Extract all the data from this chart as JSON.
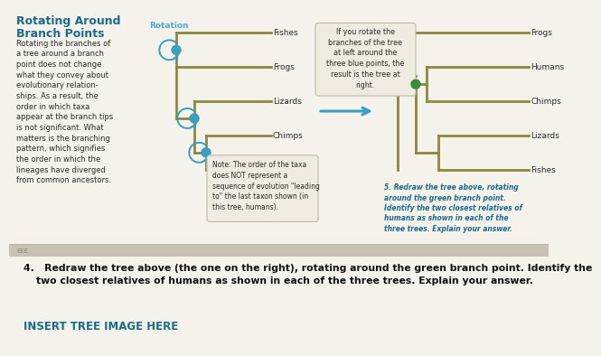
{
  "panel_bg": "#d4cdbf",
  "bottom_bg": "#f5f2ec",
  "title_line1": "Rotating Around",
  "title_line2": "Branch Points",
  "title_color": "#1a6b8a",
  "rotation_label": "Rotation",
  "rotation_color": "#4aabcc",
  "body_text": "Rotating the branches of\na tree around a branch\npoint does not change\nwhat they convey about\nevolutionary relation-\nships. As a result, the\norder in which taxa\nappear at the branch tips\nis not significant. What\nmatters is the branching\npattern, which signifies\nthe order in which the\nlineages have diverged\nfrom common ancestors.",
  "body_color": "#2a2a2a",
  "note_text": "Note: The order of the taxa\ndoes NOT represent a\nsequence of evolution \"leading\nto\" the last taxon shown (in\nthis tree, humans).",
  "note_color": "#2a2a2a",
  "tree_color": "#8b8840",
  "blue_dot_color": "#3a9ec0",
  "green_dot_color": "#3a8b3a",
  "arrow_color": "#3a9ec0",
  "callout_text": "If you rotate the\nbranches of the tree\nat left around the\nthree blue points, the\nresult is the tree at\nright.",
  "callout_bg": "#f0ebe0",
  "question4_bold": "4.  Redraw the tree above (the one on the right), rotating around the green branch point. Identify the\n    two closest relatives of humans as shown in each of the three trees. Explain your answer.",
  "question4_color": "#111111",
  "insert_text": "INSERT TREE IMAGE HERE",
  "insert_color": "#1a6b8a",
  "question5_text": "5. Redraw the tree above, rotating\naround the green branch point.\nIdentify the two closest relatives of\nhumans as shown in each of the\nthree trees. Explain your answer.",
  "question5_color": "#1a6b8a",
  "teal_bar_color": "#4aabcc"
}
